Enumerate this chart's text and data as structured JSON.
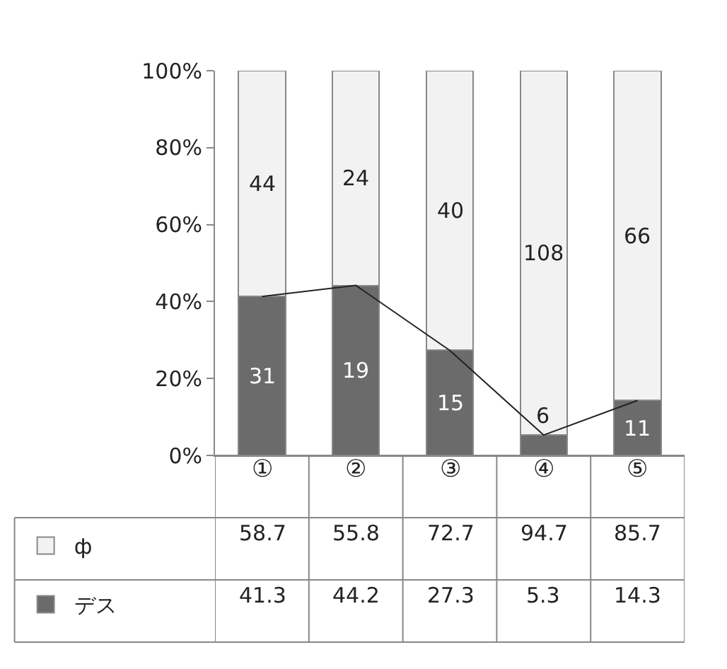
{
  "chart_data": {
    "type": "bar",
    "stacked": true,
    "categories": [
      "①",
      "②",
      "③",
      "④",
      "⑤"
    ],
    "series": [
      {
        "name": "デス",
        "color": "#6b6b6b",
        "values": [
          41.3,
          44.2,
          27.3,
          5.3,
          14.3
        ]
      },
      {
        "name": "ф",
        "color": "#f2f2f2",
        "values": [
          58.7,
          55.8,
          72.7,
          94.7,
          85.7
        ]
      },
      {
        "type": "line",
        "color": "#222222",
        "values": [
          41.3,
          44.2,
          27.3,
          5.3,
          14.3
        ],
        "value_labels": [
          null,
          null,
          null,
          null,
          null
        ]
      }
    ],
    "annotations": [
      "31",
      "19",
      "15",
      "6",
      "11",
      "44",
      "24",
      "40",
      "108",
      "66"
    ],
    "ylim": [
      0,
      100
    ],
    "yticks": [
      {
        "value": 0,
        "label": "0%"
      },
      {
        "value": 20,
        "label": "20%"
      },
      {
        "value": 40,
        "label": "40%"
      },
      {
        "value": 60,
        "label": "60%"
      },
      {
        "value": 80,
        "label": "80%"
      },
      {
        "value": 100,
        "label": "100%"
      }
    ],
    "data_labels": true,
    "legend": "bottom"
  }
}
